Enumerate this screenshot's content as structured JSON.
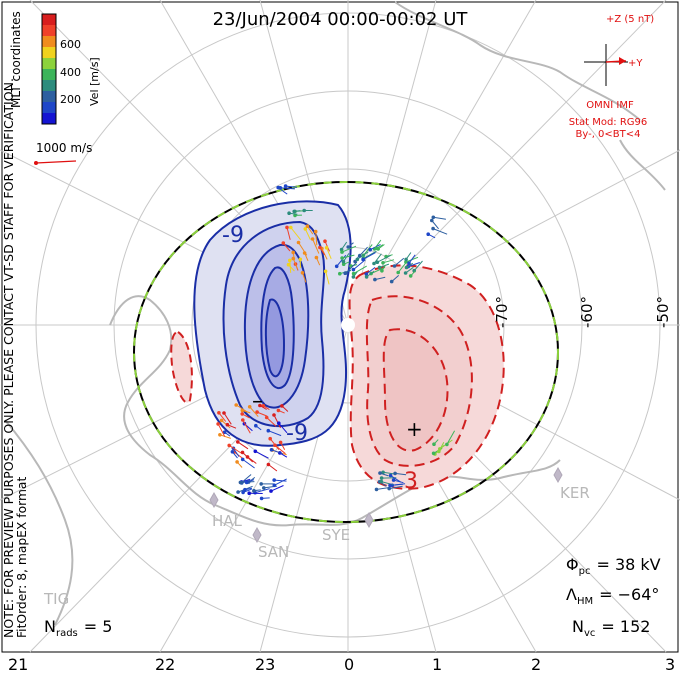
{
  "title": "23/Jun/2004 00:00-00:02 UT",
  "colorbar": {
    "label": "Vel [m/s]",
    "ticks": [
      "600",
      "400",
      "200"
    ],
    "colors": [
      "#d81e1e",
      "#f0412a",
      "#f08c1e",
      "#f0d21e",
      "#8cd23c",
      "#3cb45a",
      "#2d8c7d",
      "#2d5fa0",
      "#1e46c8",
      "#1414d2"
    ]
  },
  "coordinates_label": "MLT coordinates",
  "velocity_scale": "1000 m/s",
  "side_note": {
    "line1": "NOTE: FOR PREVIEW PURPOSES ONLY. PLEASE CONTACT VT-SD STAFF FOR VERIFICATION.",
    "line2": "FitOrder: 8, mapEX format"
  },
  "imf": {
    "z_label": "+Z (5 nT)",
    "y_label": "+Y",
    "source": "OMNI IMF",
    "model": "Stat Mod: RG96",
    "condition": "By-, 0<BT<4"
  },
  "lat_labels": [
    "-50°",
    "-60°",
    "-70°"
  ],
  "mlt_labels": [
    "21",
    "22",
    "23",
    "0",
    "1",
    "2",
    "3"
  ],
  "contour_labels": {
    "neg": "-9",
    "neg2": "-9",
    "pos": "3"
  },
  "cell_markers": {
    "min": "–",
    "max": "+"
  },
  "stations": [
    "HAL",
    "SAN",
    "SYE",
    "KER",
    "TIG"
  ],
  "stats": {
    "phi_pc": {
      "symbol": "Φ",
      "sub": "pc",
      "value": "= 38 kV"
    },
    "lambda_hm": {
      "symbol": "Λ",
      "sub": "HM",
      "value": "= −64°"
    },
    "n_vc": {
      "symbol": "N",
      "sub": "vc",
      "value": "= 152"
    },
    "n_rads": {
      "symbol": "N",
      "sub": "rads",
      "value": "= 5"
    }
  },
  "colors": {
    "negative_cell": "#1a2ea6",
    "positive_cell": "#d02020",
    "boundary_dash": "#8cd23c",
    "grid": "#c8c8c8",
    "coast": "#b8b8b8",
    "annotation": "#e01010"
  }
}
